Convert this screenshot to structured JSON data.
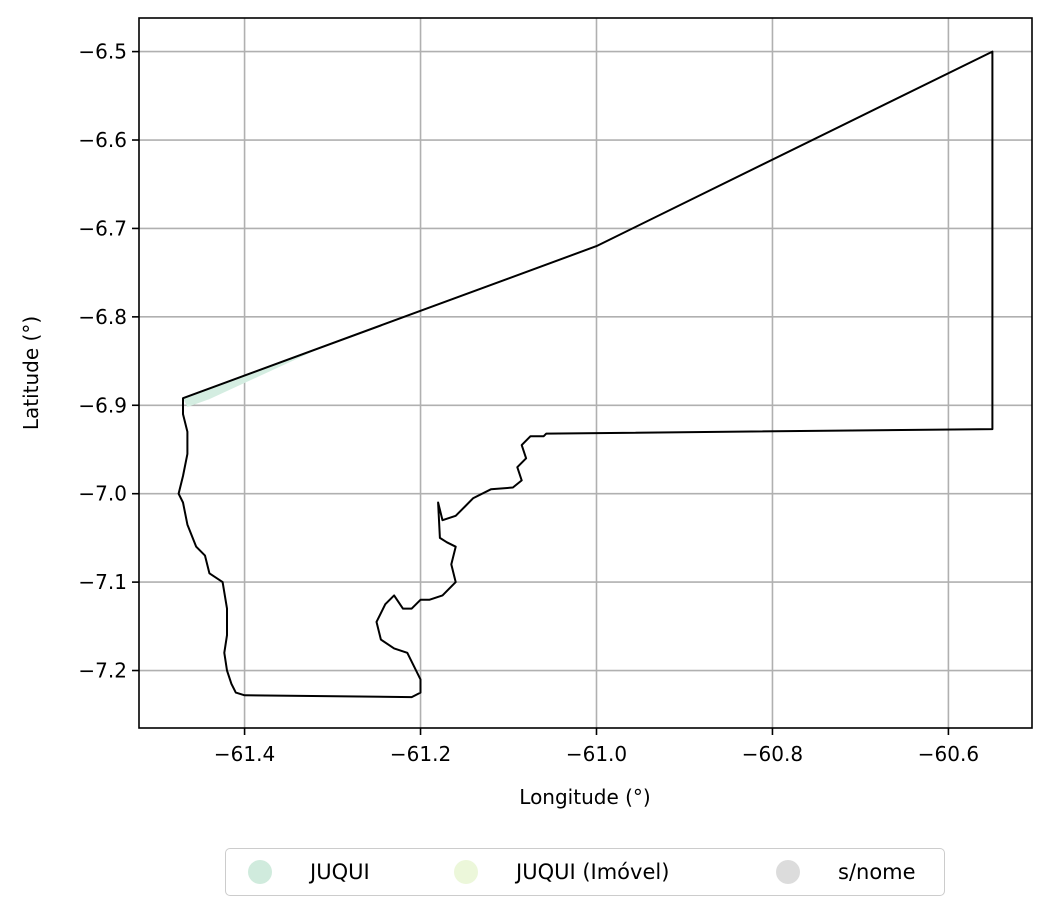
{
  "chart_data": {
    "type": "map",
    "xlabel": "Longitude (°)",
    "ylabel": "Latitude (°)",
    "xlim": [
      -61.52,
      -60.505
    ],
    "ylim": [
      -7.265,
      -6.462
    ],
    "xticks": [
      -61.4,
      -61.2,
      -61.0,
      -60.8,
      -60.6
    ],
    "xtick_labels": [
      "−61.4",
      "−61.2",
      "−61.0",
      "−60.8",
      "−60.6"
    ],
    "yticks": [
      -6.5,
      -6.6,
      -6.7,
      -6.8,
      -6.9,
      -7.0,
      -7.1,
      -7.2
    ],
    "ytick_labels": [
      "−6.5",
      "−6.6",
      "−6.7",
      "−6.8",
      "−6.9",
      "−7.0",
      "−7.1",
      "−7.2"
    ],
    "grid": true,
    "boundary": [
      [
        -61.47,
        -6.892
      ],
      [
        -61.0,
        -6.72
      ],
      [
        -60.55,
        -6.5
      ],
      [
        -60.55,
        -6.927
      ],
      [
        -61.057,
        -6.932
      ],
      [
        -61.06,
        -6.935
      ],
      [
        -61.075,
        -6.935
      ],
      [
        -61.085,
        -6.945
      ],
      [
        -61.08,
        -6.96
      ],
      [
        -61.09,
        -6.97
      ],
      [
        -61.085,
        -6.985
      ],
      [
        -61.095,
        -6.993
      ],
      [
        -61.12,
        -6.995
      ],
      [
        -61.14,
        -7.005
      ],
      [
        -61.15,
        -7.015
      ],
      [
        -61.16,
        -7.025
      ],
      [
        -61.175,
        -7.03
      ],
      [
        -61.18,
        -7.01
      ],
      [
        -61.178,
        -7.05
      ],
      [
        -61.17,
        -7.055
      ],
      [
        -61.16,
        -7.06
      ],
      [
        -61.165,
        -7.08
      ],
      [
        -61.16,
        -7.1
      ],
      [
        -61.175,
        -7.115
      ],
      [
        -61.19,
        -7.12
      ],
      [
        -61.2,
        -7.12
      ],
      [
        -61.21,
        -7.13
      ],
      [
        -61.22,
        -7.13
      ],
      [
        -61.23,
        -7.115
      ],
      [
        -61.24,
        -7.125
      ],
      [
        -61.25,
        -7.145
      ],
      [
        -61.245,
        -7.165
      ],
      [
        -61.23,
        -7.175
      ],
      [
        -61.215,
        -7.18
      ],
      [
        -61.2,
        -7.21
      ],
      [
        -61.2,
        -7.225
      ],
      [
        -61.21,
        -7.23
      ],
      [
        -61.4,
        -7.228
      ],
      [
        -61.41,
        -7.225
      ],
      [
        -61.415,
        -7.215
      ],
      [
        -61.42,
        -7.2
      ],
      [
        -61.423,
        -7.18
      ],
      [
        -61.42,
        -7.16
      ],
      [
        -61.42,
        -7.13
      ],
      [
        -61.425,
        -7.1
      ],
      [
        -61.44,
        -7.09
      ],
      [
        -61.445,
        -7.07
      ],
      [
        -61.455,
        -7.06
      ],
      [
        -61.465,
        -7.035
      ],
      [
        -61.47,
        -7.01
      ],
      [
        -61.475,
        -7.0
      ],
      [
        -61.47,
        -6.98
      ],
      [
        -61.465,
        -6.955
      ],
      [
        -61.465,
        -6.93
      ],
      [
        -61.47,
        -6.91
      ],
      [
        -61.47,
        -6.892
      ]
    ],
    "layers": [
      {
        "name": "JUQUI",
        "color": "#d4ede1",
        "polygon": [
          [
            -61.47,
            -6.892
          ],
          [
            -61.32,
            -6.838
          ],
          [
            -61.44,
            -6.893
          ],
          [
            -61.465,
            -6.902
          ]
        ]
      }
    ],
    "legend": {
      "placement": "bottom-center",
      "items": [
        {
          "label": "JUQUI",
          "color": "#d0ebdd"
        },
        {
          "label": "JUQUI (Imóvel)",
          "color": "#ecf7da"
        },
        {
          "label": "s/nome",
          "color": "#dcdcdc"
        }
      ]
    }
  }
}
